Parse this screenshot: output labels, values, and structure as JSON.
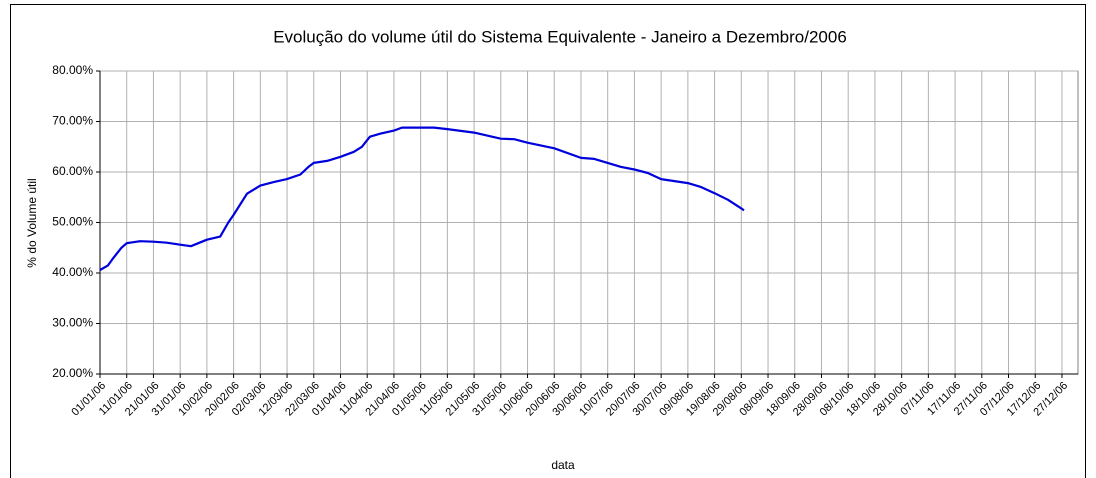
{
  "chart_data": {
    "type": "line",
    "title": "Evolução do volume útil do Sistema Equivalente - Janeiro a Dezembro/2006",
    "y_label": "% do Volume útil",
    "x_label": "data",
    "x": [
      "01/01/06",
      "04/01/06",
      "06/01/06",
      "09/01/06",
      "11/01/06",
      "16/01/06",
      "21/01/06",
      "26/01/06",
      "31/01/06",
      "04/02/06",
      "10/02/06",
      "15/02/06",
      "18/02/06",
      "20/02/06",
      "25/02/06",
      "02/03/06",
      "07/03/06",
      "12/03/06",
      "17/03/06",
      "20/03/06",
      "22/03/06",
      "27/03/06",
      "01/04/06",
      "06/04/06",
      "09/04/06",
      "12/04/06",
      "16/04/06",
      "21/04/06",
      "24/04/06",
      "06/05/06",
      "11/05/06",
      "21/05/06",
      "31/05/06",
      "05/06/06",
      "10/06/06",
      "20/06/06",
      "30/06/06",
      "05/07/06",
      "10/07/06",
      "15/07/06",
      "20/07/06",
      "25/07/06",
      "30/07/06",
      "04/08/06",
      "09/08/06",
      "14/08/06",
      "19/08/06",
      "24/08/06",
      "29/08/06",
      "30/08/06"
    ],
    "series": [
      {
        "name": "volume útil",
        "color": "#0000dd",
        "values": [
          40.6,
          41.5,
          43.0,
          45.0,
          45.9,
          46.3,
          46.2,
          46.0,
          45.6,
          45.3,
          46.6,
          47.2,
          50.0,
          51.5,
          55.7,
          57.3,
          58.0,
          58.6,
          59.5,
          61.0,
          61.8,
          62.2,
          63.0,
          64.0,
          65.0,
          67.0,
          67.6,
          68.2,
          68.8,
          68.8,
          68.5,
          67.8,
          66.6,
          66.5,
          65.8,
          64.7,
          62.8,
          62.6,
          61.8,
          61.0,
          60.5,
          59.8,
          58.6,
          58.2,
          57.8,
          57.0,
          55.8,
          54.5,
          52.8,
          52.4
        ]
      }
    ],
    "xlim": [
      "01/01/06",
      "02/01/07"
    ],
    "xticks": [
      "01/01/06",
      "11/01/06",
      "21/01/06",
      "31/01/06",
      "10/02/06",
      "20/02/06",
      "02/03/06",
      "12/03/06",
      "22/03/06",
      "01/04/06",
      "11/04/06",
      "21/04/06",
      "01/05/06",
      "11/05/06",
      "21/05/06",
      "31/05/06",
      "10/06/06",
      "20/06/06",
      "30/06/06",
      "10/07/06",
      "20/07/06",
      "30/07/06",
      "09/08/06",
      "19/08/06",
      "29/08/06",
      "08/09/06",
      "18/09/06",
      "28/09/06",
      "08/10/06",
      "18/10/06",
      "28/10/06",
      "07/11/06",
      "17/11/06",
      "27/11/06",
      "07/12/06",
      "17/12/06",
      "27/12/06"
    ],
    "ylim": [
      20,
      80
    ],
    "yticks": [
      {
        "value": 20,
        "label": "20.00%"
      },
      {
        "value": 30,
        "label": "30.00%"
      },
      {
        "value": 40,
        "label": "40.00%"
      },
      {
        "value": 50,
        "label": "50.00%"
      },
      {
        "value": 60,
        "label": "60.00%"
      },
      {
        "value": 70,
        "label": "70.00%"
      },
      {
        "value": 80,
        "label": "80.00%"
      }
    ],
    "grid": true
  }
}
